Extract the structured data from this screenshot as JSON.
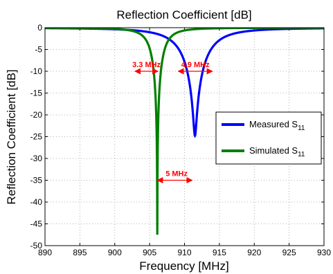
{
  "chart_data": {
    "type": "line",
    "title": "Reflection Coefficient [dB]",
    "xlabel": "Frequency [MHz]",
    "ylabel": "Reflection Coefficient [dB]",
    "xlim": [
      890,
      930
    ],
    "ylim": [
      -50,
      0
    ],
    "xticks": [
      890,
      895,
      900,
      905,
      910,
      915,
      920,
      925,
      930
    ],
    "yticks": [
      0,
      -5,
      -10,
      -15,
      -20,
      -25,
      -30,
      -35,
      -40,
      -45,
      -50
    ],
    "grid": true,
    "legend_position": "right",
    "series": [
      {
        "name": "Measured S",
        "name_sub": "11",
        "color": "#0000ff",
        "model": {
          "f0": 911.5,
          "min_db": -24.8,
          "q": 3.4
        }
      },
      {
        "name": "Simulated S",
        "name_sub": "11",
        "color": "#007f00",
        "model": {
          "f0": 906.1,
          "min_db": -47.5,
          "q": 1.55
        }
      }
    ],
    "annotations": [
      {
        "text": "3.3 MHz",
        "y": -10,
        "x_start": 902.9,
        "x_end": 906.2,
        "color": "#ff0000"
      },
      {
        "text": "4.9 MHz",
        "y": -10,
        "x_start": 909.1,
        "x_end": 914.0,
        "color": "#ff0000"
      },
      {
        "text": "5 MHz",
        "y": -35,
        "x_start": 906.1,
        "x_end": 911.1,
        "color": "#ff0000"
      }
    ]
  }
}
